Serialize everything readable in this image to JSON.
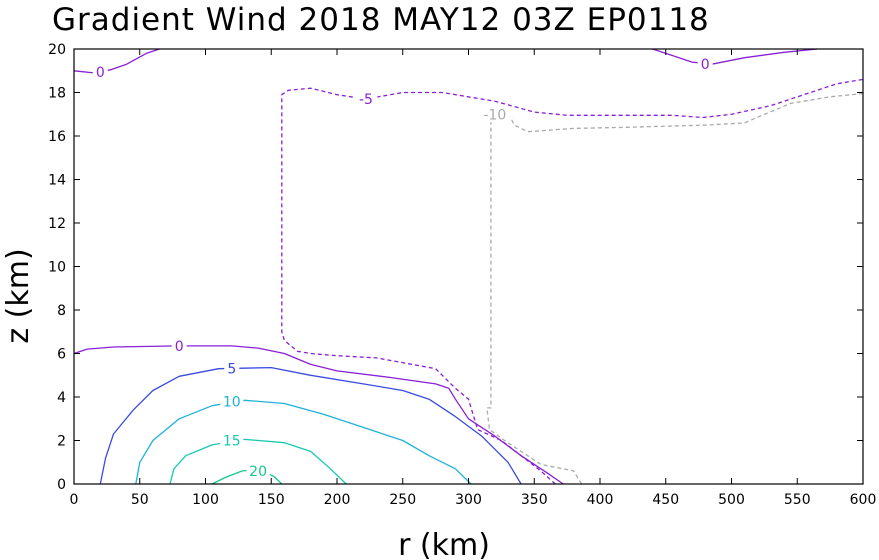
{
  "chart_data": {
    "type": "contour",
    "title": "Gradient Wind 2018 MAY12 03Z   EP0118",
    "xlabel": "r (km)",
    "ylabel": "z (km)",
    "xlim": [
      0,
      600
    ],
    "ylim": [
      0,
      20
    ],
    "x_ticks": [
      0,
      50,
      100,
      150,
      200,
      250,
      300,
      350,
      400,
      450,
      500,
      550,
      600
    ],
    "y_ticks": [
      0,
      2,
      4,
      6,
      8,
      10,
      12,
      14,
      16,
      18,
      20
    ],
    "grid": false,
    "legend": "none",
    "contours": [
      {
        "level": 0,
        "label": "0",
        "color": "#8a1fd6",
        "dashed": false,
        "label_at": [
          80,
          6.35
        ],
        "points": [
          [
            0,
            6.0
          ],
          [
            10,
            6.2
          ],
          [
            30,
            6.3
          ],
          [
            80,
            6.35
          ],
          [
            120,
            6.35
          ],
          [
            140,
            6.25
          ],
          [
            160,
            6.0
          ],
          [
            180,
            5.5
          ],
          [
            200,
            5.2
          ],
          [
            240,
            4.9
          ],
          [
            275,
            4.6
          ],
          [
            285,
            4.4
          ],
          [
            290,
            3.9
          ],
          [
            300,
            3.0
          ],
          [
            320,
            2.2
          ],
          [
            340,
            1.3
          ],
          [
            360,
            0.5
          ],
          [
            372,
            0
          ]
        ]
      },
      {
        "level": 0,
        "label": "0",
        "color": "#8a1fd6",
        "dashed": false,
        "label_at": [
          20,
          18.95
        ],
        "points": [
          [
            0,
            19.0
          ],
          [
            15,
            18.9
          ],
          [
            28,
            19.05
          ],
          [
            40,
            19.3
          ],
          [
            55,
            19.8
          ],
          [
            65,
            20.0
          ]
        ]
      },
      {
        "level": 0,
        "label": "0",
        "color": "#8a1fd6",
        "dashed": false,
        "label_at": [
          480,
          19.3
        ],
        "points": [
          [
            440,
            20.0
          ],
          [
            455,
            19.7
          ],
          [
            470,
            19.4
          ],
          [
            485,
            19.3
          ],
          [
            510,
            19.6
          ],
          [
            540,
            19.85
          ],
          [
            565,
            20.0
          ]
        ]
      },
      {
        "level": 5,
        "label": "5",
        "color": "#3a4be0",
        "dashed": false,
        "label_at": [
          120,
          5.3
        ],
        "points": [
          [
            20,
            0
          ],
          [
            24,
            1.2
          ],
          [
            30,
            2.3
          ],
          [
            45,
            3.4
          ],
          [
            60,
            4.3
          ],
          [
            80,
            4.95
          ],
          [
            110,
            5.3
          ],
          [
            150,
            5.35
          ],
          [
            180,
            5.0
          ],
          [
            220,
            4.6
          ],
          [
            250,
            4.3
          ],
          [
            270,
            3.9
          ],
          [
            290,
            3.1
          ],
          [
            310,
            2.2
          ],
          [
            330,
            1.0
          ],
          [
            340,
            0
          ]
        ]
      },
      {
        "level": 10,
        "label": "10",
        "color": "#1eb2d6",
        "dashed": false,
        "label_at": [
          120,
          3.8
        ],
        "points": [
          [
            47,
            0
          ],
          [
            50,
            1.0
          ],
          [
            60,
            2.0
          ],
          [
            80,
            3.0
          ],
          [
            105,
            3.6
          ],
          [
            130,
            3.85
          ],
          [
            160,
            3.7
          ],
          [
            190,
            3.2
          ],
          [
            220,
            2.6
          ],
          [
            250,
            2.0
          ],
          [
            270,
            1.3
          ],
          [
            290,
            0.7
          ],
          [
            302,
            0
          ]
        ]
      },
      {
        "level": 15,
        "label": "15",
        "color": "#16c9b0",
        "dashed": false,
        "label_at": [
          120,
          2.0
        ],
        "points": [
          [
            73,
            0
          ],
          [
            76,
            0.7
          ],
          [
            85,
            1.3
          ],
          [
            105,
            1.8
          ],
          [
            130,
            2.05
          ],
          [
            160,
            1.9
          ],
          [
            180,
            1.5
          ],
          [
            195,
            0.7
          ],
          [
            207,
            0
          ]
        ]
      },
      {
        "level": 20,
        "label": "20",
        "color": "#14c98a",
        "dashed": false,
        "label_at": [
          140,
          0.6
        ],
        "points": [
          [
            105,
            0
          ],
          [
            115,
            0.3
          ],
          [
            128,
            0.6
          ],
          [
            142,
            0.65
          ],
          [
            152,
            0.35
          ],
          [
            158,
            0
          ]
        ]
      },
      {
        "level": -5,
        "label": "-5",
        "color": "#8a1fd6",
        "dashed": true,
        "label_at": [
          222,
          17.7
        ],
        "points": [
          [
            366,
            0
          ],
          [
            355,
            0.6
          ],
          [
            340,
            1.3
          ],
          [
            325,
            2.0
          ],
          [
            307,
            2.5
          ],
          [
            303,
            3.3
          ],
          [
            300,
            3.9
          ],
          [
            290,
            4.4
          ],
          [
            275,
            5.3
          ],
          [
            230,
            5.8
          ],
          [
            200,
            5.9
          ],
          [
            180,
            6.0
          ],
          [
            170,
            6.1
          ],
          [
            160,
            6.6
          ],
          [
            158,
            7.0
          ],
          [
            158,
            17.9
          ],
          [
            163,
            18.1
          ],
          [
            180,
            18.2
          ],
          [
            200,
            17.9
          ],
          [
            222,
            17.7
          ],
          [
            250,
            18.0
          ],
          [
            280,
            18.0
          ],
          [
            320,
            17.6
          ],
          [
            350,
            17.1
          ],
          [
            375,
            16.95
          ],
          [
            440,
            16.95
          ],
          [
            455,
            16.95
          ],
          [
            478,
            16.85
          ],
          [
            500,
            17.0
          ],
          [
            530,
            17.4
          ],
          [
            555,
            17.9
          ],
          [
            580,
            18.4
          ],
          [
            600,
            18.6
          ]
        ]
      },
      {
        "level": -10,
        "label": "-10",
        "color": "#aaaaaa",
        "dashed": true,
        "label_at": [
          320,
          17.0
        ],
        "points": [
          [
            386,
            0
          ],
          [
            380,
            0.6
          ],
          [
            355,
            0.9
          ],
          [
            340,
            1.5
          ],
          [
            325,
            2.1
          ],
          [
            316,
            2.5
          ],
          [
            314,
            3.5
          ],
          [
            317,
            3.5
          ],
          [
            317,
            17.0
          ],
          [
            330,
            17.05
          ],
          [
            335,
            16.5
          ],
          [
            345,
            16.2
          ],
          [
            380,
            16.35
          ],
          [
            420,
            16.4
          ],
          [
            480,
            16.5
          ],
          [
            510,
            16.6
          ],
          [
            525,
            17.0
          ],
          [
            545,
            17.5
          ],
          [
            575,
            17.8
          ],
          [
            600,
            17.95
          ]
        ]
      }
    ]
  }
}
